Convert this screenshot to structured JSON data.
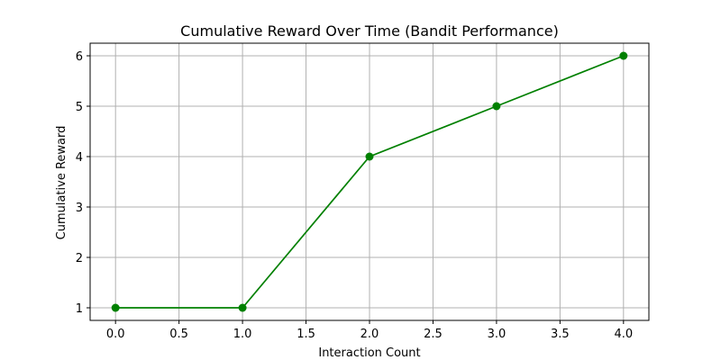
{
  "chart_data": {
    "type": "line",
    "title": "Cumulative Reward Over Time (Bandit Performance)",
    "xlabel": "Interaction Count",
    "ylabel": "Cumulative Reward",
    "x": [
      0,
      1,
      2,
      3,
      4
    ],
    "series": [
      {
        "values": [
          1,
          1,
          4,
          5,
          6
        ],
        "color": "#008000",
        "marker": "circle"
      }
    ],
    "xlim": [
      -0.2,
      4.2
    ],
    "ylim": [
      0.75,
      6.25
    ],
    "xticks": [
      0.0,
      0.5,
      1.0,
      1.5,
      2.0,
      2.5,
      3.0,
      3.5,
      4.0
    ],
    "xtick_labels": [
      "0.0",
      "0.5",
      "1.0",
      "1.5",
      "2.0",
      "2.5",
      "3.0",
      "3.5",
      "4.0"
    ],
    "yticks": [
      1,
      2,
      3,
      4,
      5,
      6
    ],
    "ytick_labels": [
      "1",
      "2",
      "3",
      "4",
      "5",
      "6"
    ],
    "grid": true,
    "legend": "none"
  }
}
